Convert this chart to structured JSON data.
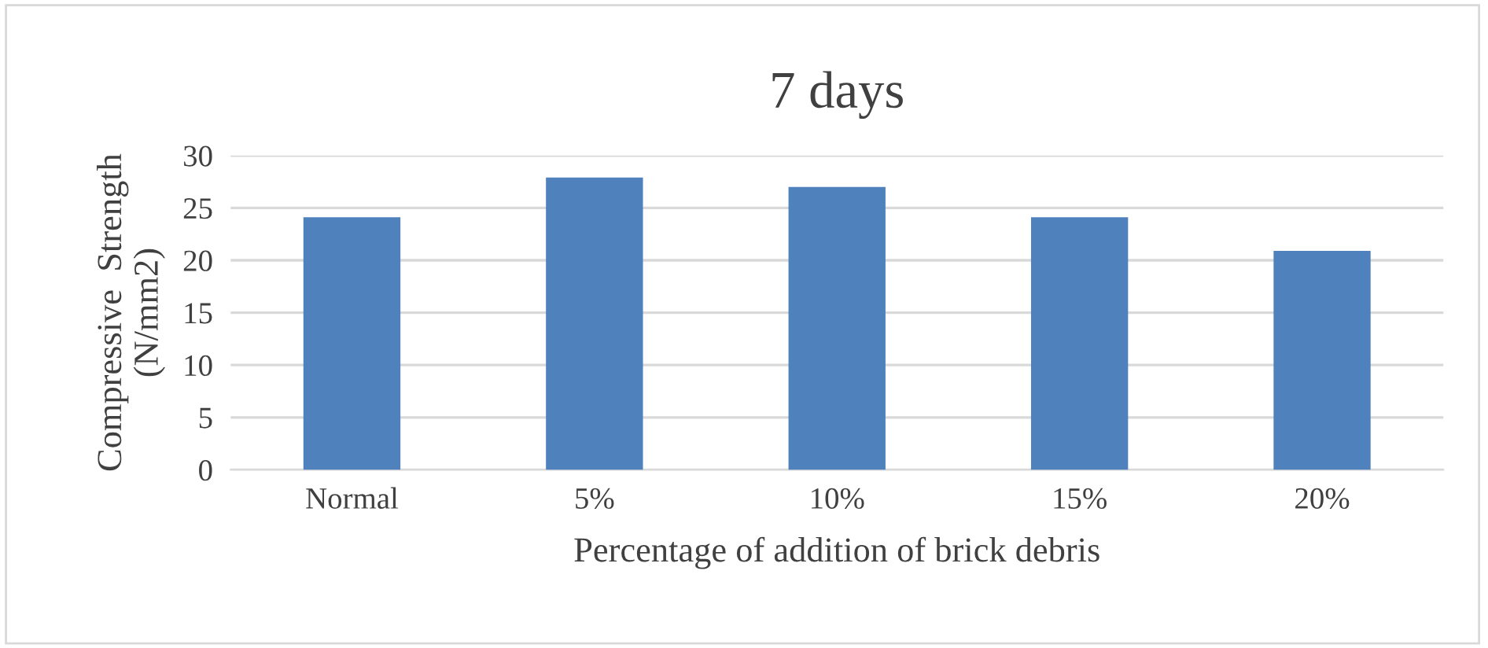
{
  "chart_data": {
    "type": "bar",
    "title": "7 days",
    "xlabel": "Percentage of addition of brick debris",
    "ylabel": "Compressive  Strength\n(N/mm2)",
    "categories": [
      "Normal",
      "5%",
      "10%",
      "15%",
      "20%"
    ],
    "values": [
      24.1,
      27.9,
      27.0,
      24.1,
      20.9
    ],
    "color": "#4f81bd",
    "ylim": [
      0,
      30
    ],
    "yticks": [
      0,
      5,
      10,
      15,
      20,
      25,
      30
    ],
    "grid": "y",
    "legend": false
  }
}
